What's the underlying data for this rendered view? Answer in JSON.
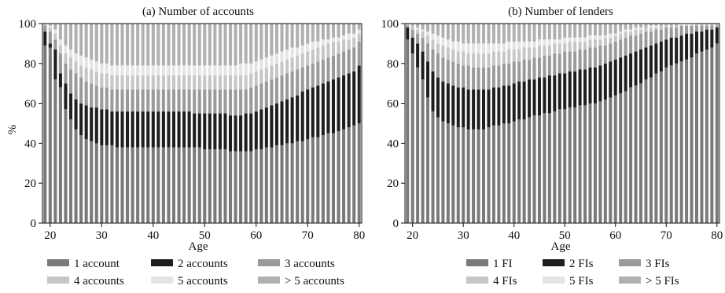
{
  "chart_data": [
    {
      "type": "bar",
      "stacked": true,
      "title": "(a) Number of accounts",
      "xlabel": "Age",
      "ylabel": "%",
      "xlim": [
        19,
        80
      ],
      "ylim": [
        0,
        100
      ],
      "xticks": [
        20,
        30,
        40,
        50,
        60,
        70,
        80
      ],
      "yticks": [
        0,
        20,
        40,
        60,
        80,
        100
      ],
      "grid": false,
      "legend_position": "bottom",
      "x": [
        19,
        20,
        21,
        22,
        23,
        24,
        25,
        26,
        27,
        28,
        29,
        30,
        31,
        32,
        33,
        34,
        35,
        36,
        37,
        38,
        39,
        40,
        41,
        42,
        43,
        44,
        45,
        46,
        47,
        48,
        49,
        50,
        51,
        52,
        53,
        54,
        55,
        56,
        57,
        58,
        59,
        60,
        61,
        62,
        63,
        64,
        65,
        66,
        67,
        68,
        69,
        70,
        71,
        72,
        73,
        74,
        75,
        76,
        77,
        78,
        79,
        80
      ],
      "cumulative_top": {
        "1 account": [
          89,
          88,
          72,
          68,
          57,
          52,
          47,
          44,
          42,
          41,
          40,
          39,
          39,
          39,
          38,
          38,
          38,
          38,
          38,
          38,
          38,
          38,
          38,
          38,
          38,
          38,
          38,
          38,
          38,
          38,
          38,
          37,
          37,
          37,
          37,
          37,
          36,
          36,
          36,
          36,
          36,
          37,
          37,
          38,
          38,
          39,
          39,
          40,
          40,
          41,
          41,
          42,
          43,
          43,
          44,
          45,
          45,
          46,
          47,
          48,
          49,
          50
        ],
        "2 accounts": [
          96,
          90,
          87,
          75,
          70,
          65,
          62,
          60,
          59,
          58,
          58,
          57,
          57,
          56,
          56,
          56,
          56,
          56,
          56,
          56,
          56,
          56,
          56,
          56,
          56,
          56,
          56,
          56,
          56,
          55,
          55,
          55,
          55,
          55,
          55,
          55,
          54,
          54,
          54,
          55,
          55,
          56,
          57,
          58,
          59,
          60,
          61,
          62,
          63,
          64,
          66,
          67,
          68,
          69,
          70,
          71,
          72,
          73,
          74,
          75,
          76,
          79
        ],
        "3 accounts": [
          99,
          96,
          92,
          85,
          80,
          77,
          75,
          73,
          71,
          70,
          69,
          68,
          68,
          67,
          67,
          67,
          67,
          67,
          67,
          67,
          67,
          67,
          67,
          67,
          67,
          67,
          67,
          67,
          67,
          67,
          67,
          67,
          67,
          67,
          67,
          67,
          67,
          67,
          67,
          67,
          68,
          69,
          70,
          71,
          72,
          73,
          74,
          75,
          76,
          77,
          78,
          79,
          80,
          81,
          82,
          83,
          84,
          85,
          86,
          87,
          88,
          91
        ],
        "4 accounts": [
          100,
          98,
          95,
          89,
          85,
          83,
          81,
          79,
          78,
          77,
          76,
          75,
          75,
          74,
          74,
          74,
          74,
          74,
          74,
          74,
          74,
          74,
          74,
          74,
          74,
          74,
          74,
          74,
          74,
          74,
          74,
          74,
          74,
          74,
          74,
          74,
          74,
          74,
          74,
          74,
          75,
          76,
          77,
          78,
          79,
          80,
          81,
          82,
          83,
          84,
          85,
          86,
          87,
          88,
          89,
          90,
          91,
          91,
          92,
          92,
          93,
          95
        ],
        "5 accounts": [
          100,
          99,
          97,
          92,
          89,
          87,
          85,
          84,
          83,
          82,
          81,
          80,
          80,
          79,
          79,
          79,
          79,
          79,
          79,
          79,
          79,
          79,
          79,
          79,
          79,
          79,
          79,
          79,
          79,
          79,
          79,
          79,
          79,
          79,
          79,
          79,
          79,
          79,
          80,
          80,
          80,
          81,
          82,
          83,
          84,
          85,
          86,
          87,
          88,
          88,
          89,
          90,
          91,
          91,
          92,
          92,
          93,
          93,
          94,
          95,
          95,
          97
        ],
        "> 5 accounts": [
          100,
          100,
          100,
          100,
          100,
          100,
          100,
          100,
          100,
          100,
          100,
          100,
          100,
          100,
          100,
          100,
          100,
          100,
          100,
          100,
          100,
          100,
          100,
          100,
          100,
          100,
          100,
          100,
          100,
          100,
          100,
          100,
          100,
          100,
          100,
          100,
          100,
          100,
          100,
          100,
          100,
          100,
          100,
          100,
          100,
          100,
          100,
          100,
          100,
          100,
          100,
          100,
          100,
          100,
          100,
          100,
          100,
          100,
          100,
          100,
          100,
          100
        ]
      },
      "series": [
        {
          "name": "1 account",
          "color": "#7a7a7a"
        },
        {
          "name": "2 accounts",
          "color": "#1e1e1e"
        },
        {
          "name": "3 accounts",
          "color": "#9a9a9a"
        },
        {
          "name": "4 accounts",
          "color": "#c6c6c6"
        },
        {
          "name": "5 accounts",
          "color": "#e4e4e4"
        },
        {
          "name": "> 5 accounts",
          "color": "#b0b0b0"
        }
      ]
    },
    {
      "type": "bar",
      "stacked": true,
      "title": "(b) Number of lenders",
      "xlabel": "Age",
      "ylabel": "",
      "xlim": [
        19,
        80
      ],
      "ylim": [
        0,
        100
      ],
      "xticks": [
        20,
        30,
        40,
        50,
        60,
        70,
        80
      ],
      "yticks": [
        0,
        20,
        40,
        60,
        80,
        100
      ],
      "grid": false,
      "legend_position": "bottom",
      "x": [
        19,
        20,
        21,
        22,
        23,
        24,
        25,
        26,
        27,
        28,
        29,
        30,
        31,
        32,
        33,
        34,
        35,
        36,
        37,
        38,
        39,
        40,
        41,
        42,
        43,
        44,
        45,
        46,
        47,
        48,
        49,
        50,
        51,
        52,
        53,
        54,
        55,
        56,
        57,
        58,
        59,
        60,
        61,
        62,
        63,
        64,
        65,
        66,
        67,
        68,
        69,
        70,
        71,
        72,
        73,
        74,
        75,
        76,
        77,
        78,
        79,
        80
      ],
      "cumulative_top": {
        "1 FI": [
          92,
          85,
          78,
          72,
          63,
          56,
          53,
          51,
          50,
          49,
          48,
          48,
          47,
          47,
          47,
          47,
          48,
          49,
          49,
          50,
          50,
          51,
          52,
          52,
          53,
          54,
          54,
          55,
          55,
          56,
          57,
          57,
          58,
          58,
          59,
          59,
          60,
          60,
          61,
          62,
          63,
          64,
          65,
          66,
          68,
          69,
          70,
          72,
          73,
          75,
          76,
          78,
          79,
          80,
          81,
          82,
          83,
          85,
          86,
          87,
          88,
          90
        ],
        "2 FIs": [
          98,
          93,
          90,
          86,
          81,
          76,
          73,
          71,
          70,
          69,
          68,
          68,
          67,
          67,
          67,
          67,
          67,
          68,
          68,
          69,
          69,
          70,
          71,
          71,
          72,
          72,
          73,
          73,
          74,
          74,
          75,
          75,
          76,
          76,
          77,
          77,
          78,
          78,
          79,
          80,
          81,
          82,
          83,
          84,
          85,
          86,
          87,
          88,
          89,
          90,
          91,
          92,
          93,
          93,
          94,
          95,
          95,
          96,
          96,
          97,
          97,
          98
        ],
        "3 FIs": [
          99,
          97,
          95,
          93,
          90,
          87,
          85,
          83,
          82,
          81,
          80,
          79,
          79,
          78,
          78,
          78,
          78,
          79,
          79,
          80,
          80,
          81,
          81,
          82,
          82,
          83,
          83,
          84,
          84,
          85,
          85,
          86,
          86,
          86,
          87,
          87,
          88,
          88,
          89,
          89,
          90,
          91,
          92,
          93,
          94,
          94,
          95,
          96,
          96,
          97,
          97,
          98,
          98,
          98,
          99,
          99,
          99,
          99,
          99,
          99,
          99,
          99
        ],
        "4 FIs": [
          100,
          99,
          97,
          96,
          94,
          92,
          90,
          89,
          88,
          87,
          86,
          86,
          85,
          85,
          85,
          85,
          85,
          86,
          86,
          86,
          87,
          87,
          87,
          88,
          88,
          88,
          89,
          89,
          89,
          90,
          90,
          90,
          91,
          91,
          91,
          91,
          92,
          92,
          92,
          93,
          93,
          94,
          95,
          96,
          96,
          97,
          97,
          98,
          98,
          98,
          99,
          99,
          99,
          99,
          99,
          99,
          99,
          100,
          100,
          100,
          100,
          100
        ],
        "5 FIs": [
          100,
          99,
          98,
          97,
          96,
          95,
          94,
          93,
          92,
          91,
          91,
          90,
          90,
          90,
          90,
          90,
          90,
          90,
          90,
          90,
          91,
          91,
          91,
          91,
          91,
          91,
          92,
          92,
          92,
          92,
          92,
          93,
          93,
          93,
          93,
          93,
          94,
          94,
          94,
          94,
          95,
          95,
          96,
          97,
          97,
          98,
          98,
          98,
          99,
          99,
          99,
          99,
          99,
          99,
          100,
          100,
          100,
          100,
          100,
          100,
          100,
          100
        ],
        "> 5 FIs": [
          100,
          100,
          100,
          100,
          100,
          100,
          100,
          100,
          100,
          100,
          100,
          100,
          100,
          100,
          100,
          100,
          100,
          100,
          100,
          100,
          100,
          100,
          100,
          100,
          100,
          100,
          100,
          100,
          100,
          100,
          100,
          100,
          100,
          100,
          100,
          100,
          100,
          100,
          100,
          100,
          100,
          100,
          100,
          100,
          100,
          100,
          100,
          100,
          100,
          100,
          100,
          100,
          100,
          100,
          100,
          100,
          100,
          100,
          100,
          100,
          100,
          100
        ]
      },
      "series": [
        {
          "name": "1 FI",
          "color": "#7a7a7a"
        },
        {
          "name": "2 FIs",
          "color": "#1e1e1e"
        },
        {
          "name": "3 FIs",
          "color": "#9a9a9a"
        },
        {
          "name": "4 FIs",
          "color": "#c6c6c6"
        },
        {
          "name": "5 FIs",
          "color": "#e4e4e4"
        },
        {
          "name": "> 5 FIs",
          "color": "#b0b0b0"
        }
      ]
    }
  ]
}
